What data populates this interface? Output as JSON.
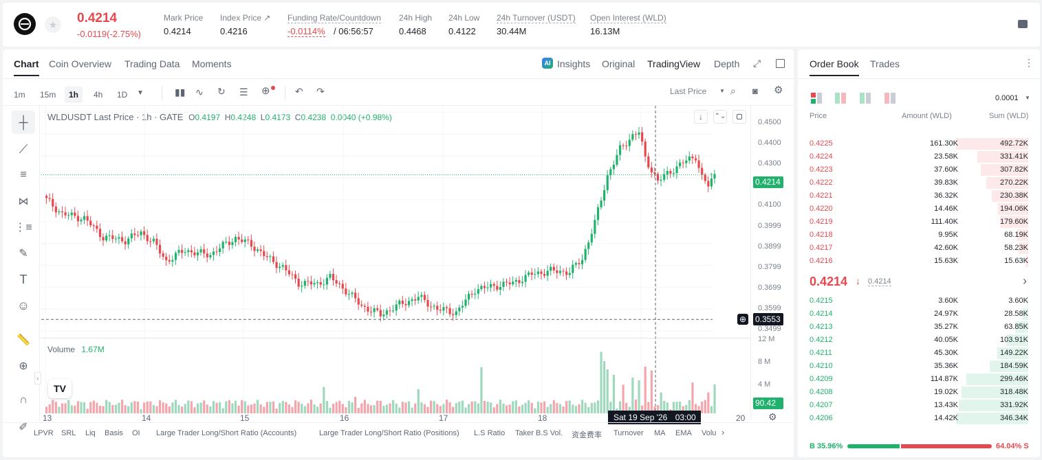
{
  "header": {
    "price": "0.4214",
    "change": "-0.0119(-2.75%)",
    "stats": [
      {
        "label": "Mark Price",
        "value": "0.4214"
      },
      {
        "label": "Index Price ↗",
        "value": "0.4216"
      },
      {
        "label": "Funding Rate/Countdown",
        "value": "-0.0114%",
        "value2": "/ 06:56:57"
      },
      {
        "label": "24h High",
        "value": "0.4468"
      },
      {
        "label": "24h Low",
        "value": "0.4122"
      },
      {
        "label": "24h Turnover (USDT)",
        "value": "30.44M"
      },
      {
        "label": "Open Interest (WLD)",
        "value": "16.13M"
      }
    ]
  },
  "chart_tabs": {
    "chart": "Chart",
    "coin": "Coin Overview",
    "trading": "Trading Data",
    "moments": "Moments"
  },
  "view_tabs": {
    "insights": "Insights",
    "original": "Original",
    "tradingview": "TradingView",
    "depth": "Depth"
  },
  "timeframes": [
    "1m",
    "15m",
    "1h",
    "4h",
    "1D"
  ],
  "price_type": "Last Price",
  "legend": {
    "symbol": "WLDUSDT Last Price · 1h · GATE",
    "o": "0.4197",
    "h": "0.4248",
    "l": "0.4173",
    "c": "0.4238",
    "chg": "0.0040 (+0.98%)"
  },
  "volume": {
    "label": "Volume",
    "value": "1.67M"
  },
  "crosshair": {
    "price": "0.3553",
    "time": "Sat 19 Sep '26",
    "time2": "03:00",
    "volume": "90.42 K"
  },
  "last_price_tag": "0.4214",
  "colors": {
    "up": "#20b26c",
    "down": "#e5494d",
    "up_vol": "#9ed8bd",
    "down_vol": "#f2a6ac"
  },
  "chart_data": {
    "type": "candlestick",
    "ylim": [
      0.3469,
      0.453
    ],
    "price_ticks": [
      "0.4500",
      "0.4400",
      "0.4300",
      "0.4100",
      "0.3999",
      "0.3899",
      "0.3799",
      "0.3699",
      "0.3599",
      "0.3499"
    ],
    "volume_ticks": [
      "12 M",
      "8 M",
      "4 M"
    ],
    "volume_max": 12.5,
    "x_ticks": [
      "13",
      "14",
      "15",
      "16",
      "17",
      "18",
      "20"
    ],
    "key_points": [
      [
        0,
        0.41
      ],
      [
        5,
        0.4035
      ],
      [
        12,
        0.4015
      ],
      [
        18,
        0.393
      ],
      [
        25,
        0.3915
      ],
      [
        30,
        0.395
      ],
      [
        34,
        0.3905
      ],
      [
        38,
        0.382
      ],
      [
        44,
        0.387
      ],
      [
        48,
        0.3855
      ],
      [
        52,
        0.385
      ],
      [
        56,
        0.389
      ],
      [
        60,
        0.3925
      ],
      [
        65,
        0.3895
      ],
      [
        70,
        0.3835
      ],
      [
        75,
        0.379
      ],
      [
        80,
        0.372
      ],
      [
        86,
        0.3715
      ],
      [
        90,
        0.3745
      ],
      [
        95,
        0.3685
      ],
      [
        100,
        0.3615
      ],
      [
        106,
        0.3575
      ],
      [
        112,
        0.362
      ],
      [
        118,
        0.3655
      ],
      [
        124,
        0.36
      ],
      [
        130,
        0.3585
      ],
      [
        136,
        0.369
      ],
      [
        142,
        0.3705
      ],
      [
        148,
        0.372
      ],
      [
        154,
        0.376
      ],
      [
        160,
        0.3775
      ],
      [
        166,
        0.377
      ],
      [
        170,
        0.383
      ],
      [
        174,
        0.3995
      ],
      [
        178,
        0.421
      ],
      [
        182,
        0.433
      ],
      [
        186,
        0.4395
      ],
      [
        188,
        0.441
      ],
      [
        190,
        0.429
      ],
      [
        194,
        0.4185
      ],
      [
        198,
        0.423
      ],
      [
        202,
        0.427
      ],
      [
        206,
        0.43
      ],
      [
        208,
        0.42
      ],
      [
        210,
        0.4165
      ],
      [
        212,
        0.4214
      ]
    ],
    "volume_spikes": {
      "57": 2.2,
      "60": 2.3,
      "88": 4.8,
      "98": 3.0,
      "118": 4.4,
      "128": 2.0,
      "138": 8.4,
      "176": 11.2,
      "177": 9.5,
      "178": 8.0,
      "180": 7.0,
      "183": 5.2,
      "186": 6.5,
      "188": 6.0,
      "190": 8.5,
      "192": 7.8,
      "195": 3.8,
      "205": 5.6,
      "210": 3.8,
      "212": 5.3
    },
    "count": 213
  },
  "indicators": [
    "LPVR",
    "SRL",
    "Liq",
    "Basis",
    "OI",
    "Large Trader Long/Short Ratio (Accounts)",
    "Large Trader Long/Short Ratio (Positions)",
    "L.S Ratio",
    "Taker B.S Vol.",
    "资金费率",
    "Turnover",
    "MA",
    "EMA",
    "Volu"
  ],
  "orderbook": {
    "tabs": {
      "book": "Order Book",
      "trades": "Trades"
    },
    "precision": "0.0001",
    "cols": {
      "price": "Price",
      "amount": "Amount (WLD)",
      "sum": "Sum (WLD)"
    },
    "asks": [
      {
        "p": "0.4225",
        "a": "161.30K",
        "s": "492.72K",
        "f": 1.0
      },
      {
        "p": "0.4224",
        "a": "23.58K",
        "s": "331.41K",
        "f": 0.7
      },
      {
        "p": "0.4223",
        "a": "37.60K",
        "s": "307.82K",
        "f": 0.66
      },
      {
        "p": "0.4222",
        "a": "39.83K",
        "s": "270.22K",
        "f": 0.58
      },
      {
        "p": "0.4221",
        "a": "36.32K",
        "s": "230.38K",
        "f": 0.5
      },
      {
        "p": "0.4220",
        "a": "14.46K",
        "s": "194.06K",
        "f": 0.42
      },
      {
        "p": "0.4219",
        "a": "111.40K",
        "s": "179.60K",
        "f": 0.39
      },
      {
        "p": "0.4218",
        "a": "9.95K",
        "s": "68.19K",
        "f": 0.15
      },
      {
        "p": "0.4217",
        "a": "42.60K",
        "s": "58.23K",
        "f": 0.13
      },
      {
        "p": "0.4216",
        "a": "15.63K",
        "s": "15.63K",
        "f": 0.035
      }
    ],
    "mid": {
      "price": "0.4214",
      "mark": "0.4214"
    },
    "bids": [
      {
        "p": "0.4215",
        "a": "3.60K",
        "s": "3.60K",
        "f": 0.01
      },
      {
        "p": "0.4214",
        "a": "24.97K",
        "s": "28.58K",
        "f": 0.08
      },
      {
        "p": "0.4213",
        "a": "35.27K",
        "s": "63.85K",
        "f": 0.18
      },
      {
        "p": "0.4212",
        "a": "40.05K",
        "s": "103.91K",
        "f": 0.3
      },
      {
        "p": "0.4211",
        "a": "45.30K",
        "s": "149.22K",
        "f": 0.43
      },
      {
        "p": "0.4210",
        "a": "35.36K",
        "s": "184.59K",
        "f": 0.53
      },
      {
        "p": "0.4209",
        "a": "114.87K",
        "s": "299.46K",
        "f": 0.86
      },
      {
        "p": "0.4208",
        "a": "19.02K",
        "s": "318.48K",
        "f": 0.92
      },
      {
        "p": "0.4207",
        "a": "13.43K",
        "s": "331.92K",
        "f": 0.96
      },
      {
        "p": "0.4206",
        "a": "14.42K",
        "s": "346.34K",
        "f": 1.0
      }
    ],
    "buy_ratio": "B 35.96%",
    "sell_ratio": "64.04% S",
    "buy_frac": 0.3596
  }
}
